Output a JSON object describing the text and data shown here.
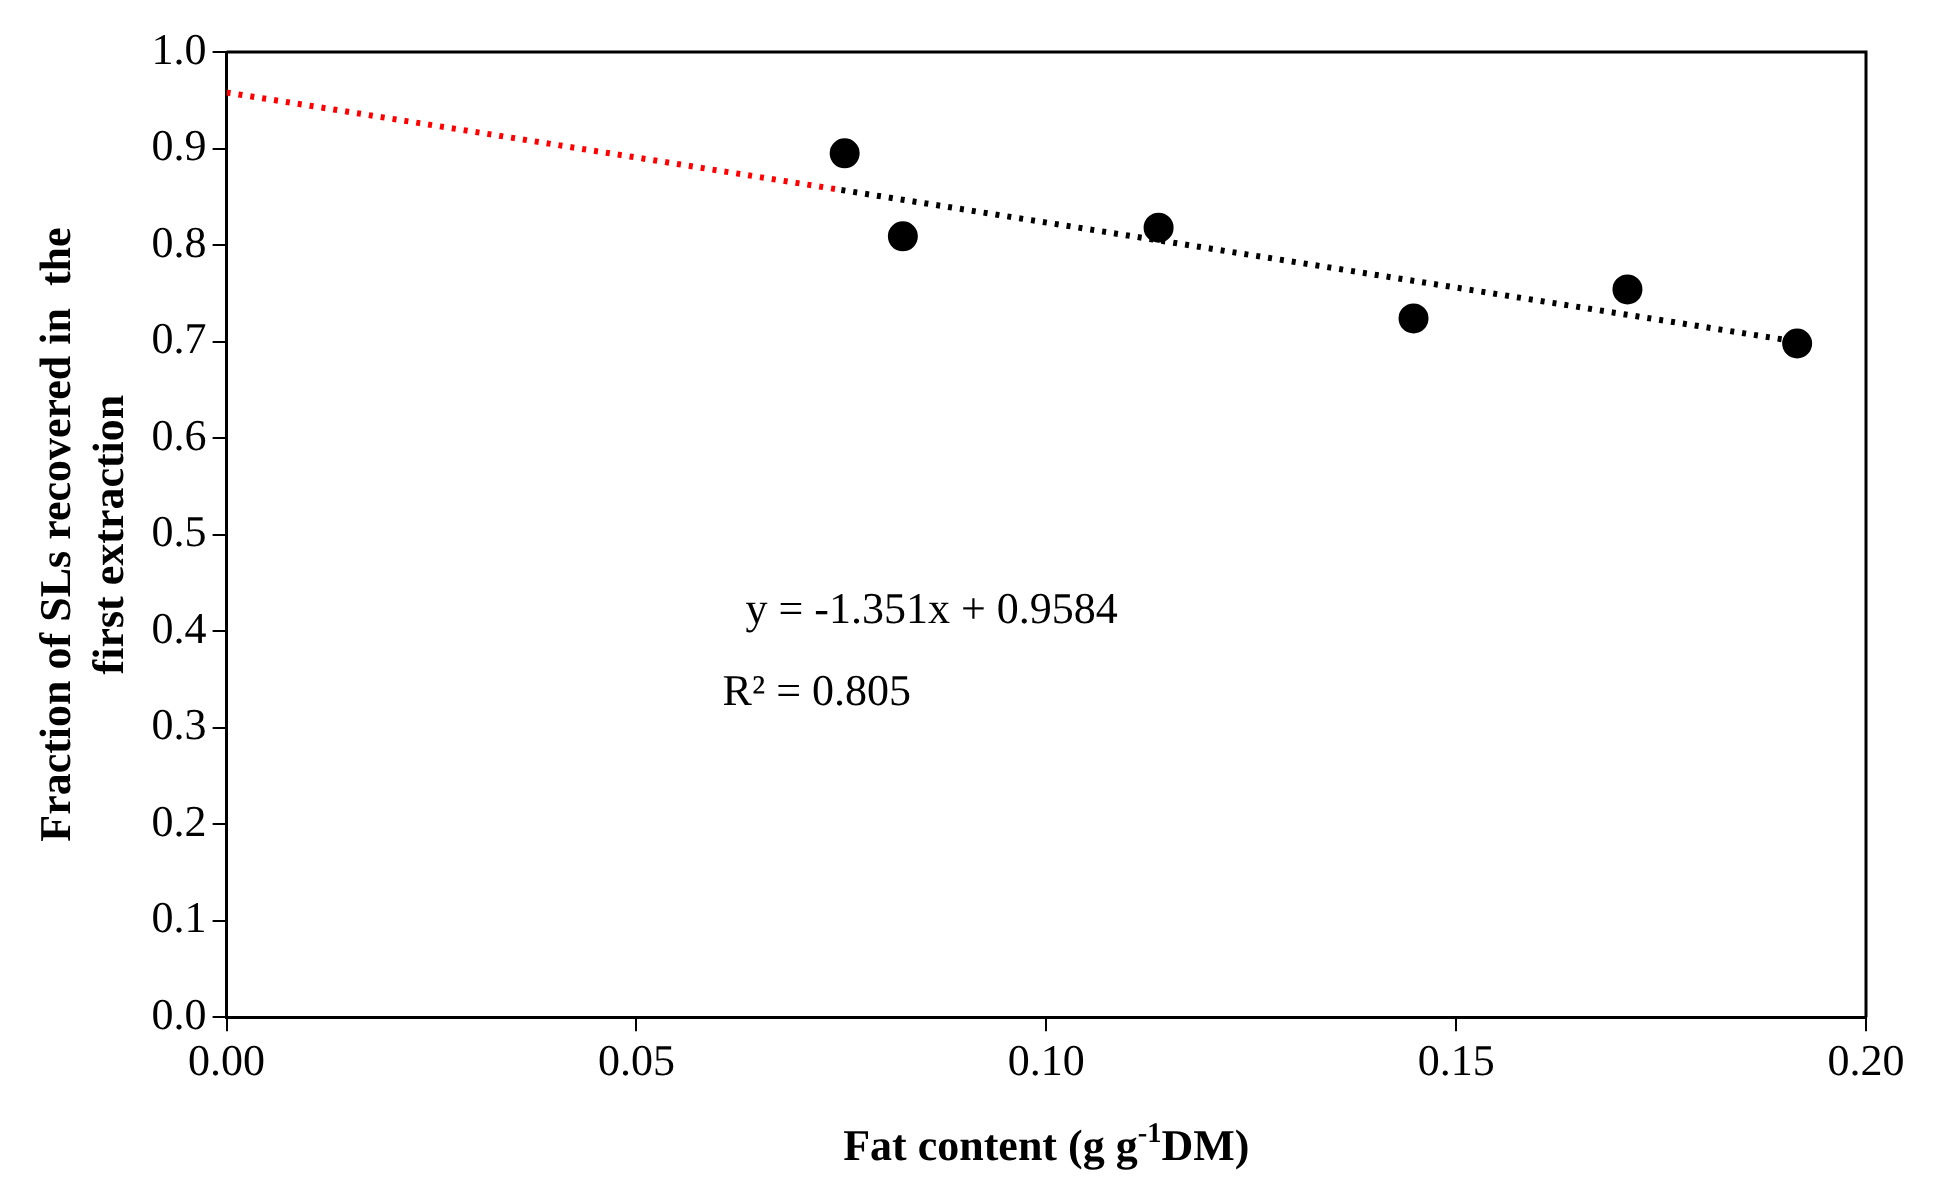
{
  "chart_data": {
    "type": "scatter",
    "xlabel": "Fat content (g g$^{-1}$DM)",
    "ylabel": "Fraction of SLs recovered in  the first extraction",
    "xlim": [
      0,
      0.2
    ],
    "xticks": [
      {
        "value": 0,
        "label": "0.00"
      },
      0.05,
      {
        "value": 0.1,
        "label": "0.10"
      },
      0.15,
      {
        "value": 0.2,
        "label": "0.20"
      }
    ],
    "ylim": [
      0,
      1
    ],
    "yticks": [
      {
        "value": 0,
        "label": "0.0"
      },
      0.1,
      0.2,
      0.3,
      0.4,
      0.5,
      0.6,
      0.7,
      0.8,
      0.9,
      {
        "value": 1,
        "label": "1.0"
      }
    ],
    "grid": false,
    "legend": false,
    "series": [
      {
        "type": "scatter",
        "marker": "circle",
        "color": "#000000",
        "x": [
          0.0754,
          0.0825,
          0.1137,
          0.1448,
          0.1709,
          0.1916
        ],
        "values": [
          0.895,
          0.809,
          0.818,
          0.724,
          0.754,
          0.698
        ]
      },
      {
        "type": "line",
        "color": "#ff0000",
        "line_style": "dotted",
        "x": [
          0,
          0.075
        ],
        "values": [
          0.958,
          0.857
        ]
      },
      {
        "type": "line",
        "color": "#000000",
        "line_style": "dotted",
        "x": [
          0.075,
          0.19
        ],
        "values": [
          0.857,
          0.702
        ]
      }
    ],
    "annotations": [
      "y = -1.351x + 0.9584",
      "R² = 0.805"
    ]
  }
}
